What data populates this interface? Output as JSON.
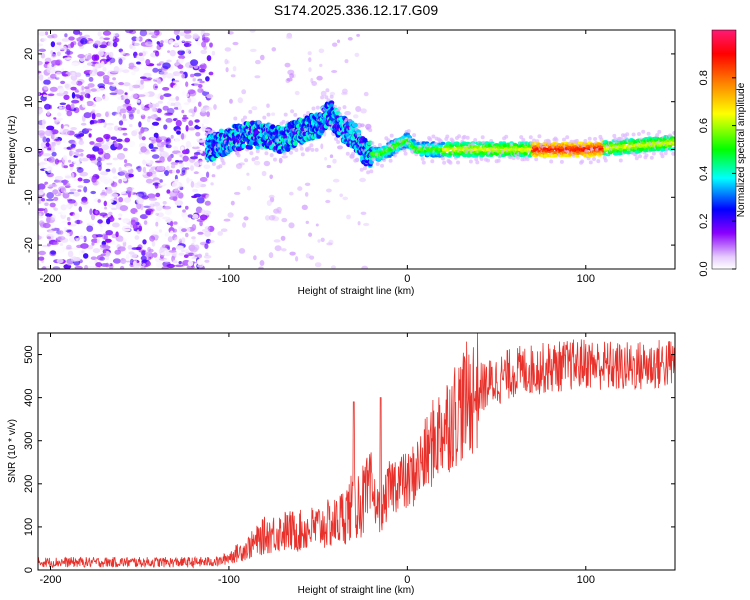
{
  "title": "S174.2025.336.12.17.G09",
  "chart_data": [
    {
      "type": "heatmap",
      "xlabel": "Height of straight line (km)",
      "ylabel": "Frequency (Hz)",
      "xlim": [
        -207,
        150
      ],
      "ylim": [
        -25,
        25
      ],
      "xticks": [
        -200,
        -100,
        0,
        100
      ],
      "yticks": [
        -20,
        -10,
        0,
        10,
        20
      ],
      "colorbar": {
        "label": "Normalized spectral amplitude",
        "range": [
          0,
          1
        ],
        "ticks": [
          "0.0",
          "0.2",
          "0.4",
          "0.6",
          "0.8"
        ],
        "colors": [
          "#ffffff",
          "#e6ccff",
          "#8b00ff",
          "#0000ff",
          "#00ffff",
          "#00ff00",
          "#ffff00",
          "#ff8000",
          "#ff0000",
          "#ff1493"
        ]
      },
      "features": {
        "noise_region_x": [
          -207,
          -110
        ],
        "signal_start_x": -112,
        "main_ridge": [
          [
            -112,
            0
          ],
          [
            -100,
            2
          ],
          [
            -90,
            3
          ],
          [
            -80,
            3
          ],
          [
            -70,
            2
          ],
          [
            -60,
            4
          ],
          [
            -50,
            5
          ],
          [
            -44,
            8
          ],
          [
            -40,
            6
          ],
          [
            -35,
            4
          ],
          [
            -30,
            3
          ],
          [
            -25,
            0
          ],
          [
            -22,
            -1
          ],
          [
            -15,
            -1
          ],
          [
            -10,
            0
          ],
          [
            0,
            2
          ],
          [
            5,
            0
          ],
          [
            20,
            0
          ],
          [
            50,
            0
          ],
          [
            80,
            0
          ],
          [
            100,
            0
          ],
          [
            120,
            0.5
          ],
          [
            150,
            1.5
          ]
        ],
        "peak_intensity_x": [
          70,
          110
        ]
      }
    },
    {
      "type": "line",
      "xlabel": "Height of straight line (km)",
      "ylabel": "SNR (10 * v/v)",
      "xlim": [
        -207,
        150
      ],
      "ylim": [
        0,
        550
      ],
      "xticks": [
        -200,
        -100,
        0,
        100
      ],
      "yticks": [
        0,
        100,
        200,
        300,
        400,
        500
      ],
      "series": [
        {
          "name": "SNR",
          "color": "#e8312b",
          "x": [
            -207,
            -180,
            -150,
            -120,
            -105,
            -100,
            -90,
            -80,
            -70,
            -60,
            -50,
            -40,
            -35,
            -30,
            -25,
            -20,
            -15,
            -10,
            -5,
            0,
            5,
            10,
            15,
            20,
            30,
            40,
            50,
            60,
            80,
            100,
            120,
            150
          ],
          "y": [
            18,
            18,
            18,
            18,
            20,
            30,
            50,
            80,
            90,
            90,
            100,
            110,
            130,
            150,
            160,
            180,
            130,
            190,
            210,
            200,
            230,
            260,
            300,
            330,
            380,
            420,
            440,
            460,
            470,
            480,
            470,
            480
          ],
          "spikes": [
            [
              -30,
              390
            ],
            [
              -15,
              400
            ]
          ]
        }
      ]
    }
  ]
}
